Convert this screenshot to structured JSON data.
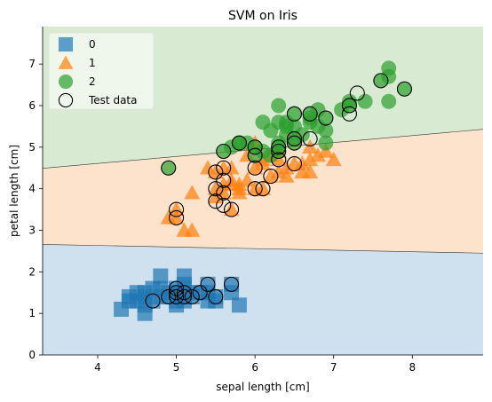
{
  "chart_data": {
    "type": "scatter",
    "title": "SVM on Iris",
    "xlabel": "sepal length [cm]",
    "ylabel": "petal length [cm]",
    "xlim": [
      3.3,
      8.9
    ],
    "ylim": [
      0,
      7.9
    ],
    "xticks": [
      4,
      5,
      6,
      7,
      8
    ],
    "yticks": [
      0,
      1,
      2,
      3,
      4,
      5,
      6,
      7
    ],
    "legend_position": "top-left",
    "regions": [
      {
        "class": "0",
        "color": "#cfe0ee"
      },
      {
        "class": "1",
        "color": "#fde3cc"
      },
      {
        "class": "2",
        "color": "#d8ebd2"
      }
    ],
    "boundaries": [
      {
        "between": [
          "0",
          "1"
        ],
        "x": [
          3.3,
          8.9
        ],
        "y": [
          2.66,
          2.45
        ]
      },
      {
        "between": [
          "1",
          "2"
        ],
        "x": [
          3.3,
          8.9
        ],
        "y": [
          4.49,
          5.43
        ]
      }
    ],
    "series": [
      {
        "name": "0",
        "marker": "square",
        "color": "#1f77b4",
        "points": [
          [
            4.3,
            1.1
          ],
          [
            4.4,
            1.3
          ],
          [
            4.4,
            1.4
          ],
          [
            4.5,
            1.3
          ],
          [
            4.6,
            1.4
          ],
          [
            4.6,
            1.5
          ],
          [
            4.6,
            1.2
          ],
          [
            4.7,
            1.3
          ],
          [
            4.7,
            1.6
          ],
          [
            4.8,
            1.4
          ],
          [
            4.8,
            1.6
          ],
          [
            4.8,
            1.9
          ],
          [
            4.9,
            1.4
          ],
          [
            4.9,
            1.5
          ],
          [
            5.0,
            1.4
          ],
          [
            5.0,
            1.6
          ],
          [
            5.0,
            1.2
          ],
          [
            5.0,
            1.5
          ],
          [
            5.1,
            1.4
          ],
          [
            5.1,
            1.5
          ],
          [
            5.1,
            1.7
          ],
          [
            5.1,
            1.9
          ],
          [
            5.1,
            1.6
          ],
          [
            5.2,
            1.5
          ],
          [
            5.2,
            1.4
          ],
          [
            5.3,
            1.5
          ],
          [
            5.4,
            1.7
          ],
          [
            5.4,
            1.5
          ],
          [
            5.4,
            1.3
          ],
          [
            5.5,
            1.4
          ],
          [
            5.5,
            1.3
          ],
          [
            5.7,
            1.5
          ],
          [
            5.7,
            1.7
          ],
          [
            5.8,
            1.2
          ],
          [
            4.6,
            1.0
          ],
          [
            5.1,
            1.3
          ],
          [
            5.0,
            1.3
          ],
          [
            4.5,
            1.5
          ]
        ]
      },
      {
        "name": "1",
        "marker": "triangle",
        "color": "#ff7f0e",
        "points": [
          [
            4.9,
            3.3
          ],
          [
            5.0,
            3.5
          ],
          [
            5.1,
            3.0
          ],
          [
            5.2,
            3.9
          ],
          [
            5.5,
            4.0
          ],
          [
            5.5,
            4.4
          ],
          [
            5.6,
            4.1
          ],
          [
            5.6,
            3.9
          ],
          [
            5.6,
            4.5
          ],
          [
            5.7,
            4.5
          ],
          [
            5.7,
            4.2
          ],
          [
            5.7,
            4.1
          ],
          [
            5.8,
            4.0
          ],
          [
            5.8,
            3.9
          ],
          [
            5.9,
            4.8
          ],
          [
            5.9,
            4.2
          ],
          [
            6.0,
            4.0
          ],
          [
            6.0,
            4.5
          ],
          [
            6.0,
            5.1
          ],
          [
            6.1,
            4.0
          ],
          [
            6.1,
            4.7
          ],
          [
            6.1,
            4.6
          ],
          [
            6.2,
            4.3
          ],
          [
            6.2,
            4.8
          ],
          [
            6.3,
            4.4
          ],
          [
            6.3,
            4.9
          ],
          [
            6.3,
            4.7
          ],
          [
            6.4,
            4.5
          ],
          [
            6.4,
            4.3
          ],
          [
            6.5,
            4.6
          ],
          [
            6.6,
            4.4
          ],
          [
            6.6,
            4.6
          ],
          [
            6.7,
            4.4
          ],
          [
            6.7,
            4.7
          ],
          [
            6.7,
            5.0
          ],
          [
            6.8,
            4.8
          ],
          [
            6.9,
            4.9
          ],
          [
            7.0,
            4.7
          ],
          [
            5.4,
            4.5
          ],
          [
            5.5,
            3.8
          ],
          [
            5.0,
            3.3
          ],
          [
            5.7,
            3.5
          ],
          [
            5.2,
            3.0
          ],
          [
            5.8,
            4.1
          ]
        ]
      },
      {
        "name": "2",
        "marker": "circle",
        "color": "#2ca02c",
        "points": [
          [
            4.9,
            4.5
          ],
          [
            5.6,
            4.9
          ],
          [
            5.7,
            5.0
          ],
          [
            5.8,
            5.1
          ],
          [
            5.8,
            5.1
          ],
          [
            5.9,
            5.1
          ],
          [
            6.0,
            4.8
          ],
          [
            6.0,
            5.0
          ],
          [
            6.1,
            4.9
          ],
          [
            6.1,
            5.6
          ],
          [
            6.2,
            4.8
          ],
          [
            6.2,
            5.4
          ],
          [
            6.3,
            4.9
          ],
          [
            6.3,
            5.0
          ],
          [
            6.3,
            5.1
          ],
          [
            6.3,
            5.6
          ],
          [
            6.3,
            6.0
          ],
          [
            6.4,
            5.3
          ],
          [
            6.4,
            5.5
          ],
          [
            6.4,
            5.6
          ],
          [
            6.5,
            5.1
          ],
          [
            6.5,
            5.2
          ],
          [
            6.5,
            5.5
          ],
          [
            6.7,
            5.7
          ],
          [
            6.7,
            5.8
          ],
          [
            6.7,
            5.6
          ],
          [
            6.8,
            5.5
          ],
          [
            6.8,
            5.9
          ],
          [
            6.9,
            5.1
          ],
          [
            6.9,
            5.4
          ],
          [
            6.9,
            5.7
          ],
          [
            7.1,
            5.9
          ],
          [
            7.2,
            6.0
          ],
          [
            7.2,
            6.1
          ],
          [
            7.4,
            6.1
          ],
          [
            7.6,
            6.6
          ],
          [
            7.7,
            6.7
          ],
          [
            7.7,
            6.9
          ],
          [
            7.7,
            6.1
          ],
          [
            7.9,
            6.4
          ],
          [
            6.5,
            5.8
          ],
          [
            6.6,
            5.3
          ]
        ]
      },
      {
        "name": "Test data",
        "marker": "open-circle",
        "color": "#000000",
        "points": [
          [
            4.7,
            1.3
          ],
          [
            4.9,
            1.4
          ],
          [
            5.0,
            1.4
          ],
          [
            5.0,
            1.5
          ],
          [
            5.0,
            1.6
          ],
          [
            5.1,
            1.4
          ],
          [
            5.1,
            1.5
          ],
          [
            5.2,
            1.4
          ],
          [
            5.3,
            1.5
          ],
          [
            5.4,
            1.7
          ],
          [
            5.5,
            1.4
          ],
          [
            5.7,
            1.7
          ],
          [
            5.0,
            3.3
          ],
          [
            5.0,
            3.5
          ],
          [
            5.5,
            3.7
          ],
          [
            5.5,
            4.0
          ],
          [
            5.6,
            3.6
          ],
          [
            5.6,
            3.9
          ],
          [
            5.7,
            3.5
          ],
          [
            5.5,
            4.4
          ],
          [
            5.6,
            4.5
          ],
          [
            5.6,
            4.2
          ],
          [
            6.0,
            4.0
          ],
          [
            6.1,
            4.0
          ],
          [
            6.0,
            4.5
          ],
          [
            6.2,
            4.3
          ],
          [
            6.3,
            4.7
          ],
          [
            6.3,
            5.0
          ],
          [
            6.5,
            4.6
          ],
          [
            5.6,
            4.9
          ],
          [
            5.8,
            5.1
          ],
          [
            6.0,
            5.0
          ],
          [
            6.0,
            4.8
          ],
          [
            6.3,
            4.9
          ],
          [
            6.5,
            5.1
          ],
          [
            6.5,
            5.2
          ],
          [
            6.7,
            5.2
          ],
          [
            6.9,
            5.7
          ],
          [
            6.5,
            5.8
          ],
          [
            6.7,
            5.8
          ],
          [
            7.2,
            5.8
          ],
          [
            7.2,
            6.0
          ],
          [
            7.3,
            6.3
          ],
          [
            7.6,
            6.6
          ],
          [
            7.9,
            6.4
          ],
          [
            4.9,
            4.5
          ]
        ]
      }
    ],
    "legend": [
      {
        "label": "0",
        "marker": "square",
        "color": "#1f77b4"
      },
      {
        "label": "1",
        "marker": "triangle",
        "color": "#ff7f0e"
      },
      {
        "label": "2",
        "marker": "circle",
        "color": "#2ca02c"
      },
      {
        "label": "Test data",
        "marker": "open-circle",
        "color": "#000000"
      }
    ]
  }
}
